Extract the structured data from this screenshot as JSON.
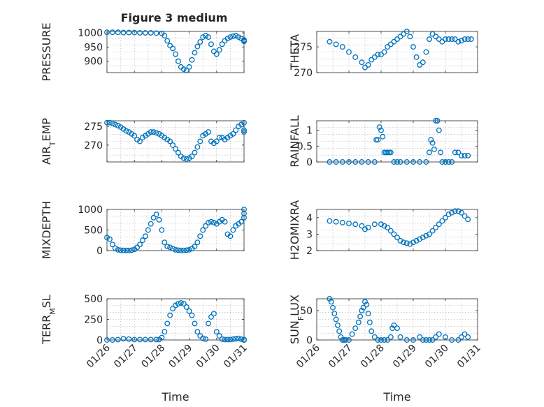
{
  "chart_data": [
    {
      "type": "scatter",
      "id": "pressure",
      "title": "Figure 3 medium",
      "xlabel": "",
      "ylabel": "PRESSURE",
      "ylim": [
        860,
        1005
      ],
      "yticks": [
        900,
        950,
        1000
      ],
      "ytick_labels": [
        "900",
        "950",
        "1000"
      ],
      "xlim": [
        0,
        5
      ],
      "xticks": [
        0,
        1,
        2,
        3,
        4,
        5
      ],
      "xtick_labels": [
        "01/26",
        "01/27",
        "01/28",
        "01/29",
        "01/30",
        "01/31"
      ],
      "show_xticklabels": false,
      "marker_color": "#0072BD",
      "series": [
        {
          "x": [
            0,
            0.2,
            0.4,
            0.6,
            0.8,
            1.0,
            1.2,
            1.4,
            1.6,
            1.8,
            2.0,
            2.1,
            2.2,
            2.3,
            2.4,
            2.5,
            2.6,
            2.7,
            2.8,
            2.9,
            3.0,
            3.1,
            3.2,
            3.3,
            3.4,
            3.5,
            3.6,
            3.7,
            3.8,
            3.9,
            4.0,
            4.1,
            4.2,
            4.3,
            4.4,
            4.5,
            4.6,
            4.7,
            4.8,
            4.9,
            5.0,
            5.1,
            5.2
          ],
          "y": [
            1002,
            1002,
            1002,
            1001,
            1001,
            1001,
            1000,
            1000,
            1000,
            999,
            998,
            990,
            972,
            955,
            945,
            925,
            900,
            880,
            872,
            868,
            880,
            905,
            930,
            952,
            968,
            985,
            990,
            985,
            960,
            935,
            925,
            940,
            960,
            972,
            980,
            985,
            988,
            990,
            985,
            980,
            975,
            972,
            970
          ]
        }
      ]
    },
    {
      "type": "scatter",
      "id": "theta",
      "title": "",
      "xlabel": "",
      "ylabel": "THETA",
      "ylim": [
        270,
        278
      ],
      "yticks": [
        270,
        275
      ],
      "ytick_labels": [
        "270",
        "275"
      ],
      "xlim": [
        0,
        5
      ],
      "xticks": [
        0,
        1,
        2,
        3,
        4,
        5
      ],
      "xtick_labels": [
        "01/26",
        "01/27",
        "01/28",
        "01/29",
        "01/30",
        "01/31"
      ],
      "show_xticklabels": false,
      "marker_color": "#0072BD",
      "series": [
        {
          "x": [
            0.4,
            0.6,
            0.8,
            1.0,
            1.2,
            1.4,
            1.5,
            1.6,
            1.7,
            1.8,
            1.9,
            2.0,
            2.1,
            2.2,
            2.3,
            2.4,
            2.5,
            2.6,
            2.7,
            2.8,
            2.9,
            3.0,
            3.1,
            3.2,
            3.3,
            3.4,
            3.5,
            3.6,
            3.7,
            3.8,
            3.9,
            4.0,
            4.1,
            4.2,
            4.3,
            4.4,
            4.5,
            4.6,
            4.7,
            4.8
          ],
          "y": [
            276,
            275.5,
            275,
            274,
            273,
            272,
            271,
            271.5,
            272.5,
            273,
            273.5,
            273.5,
            274,
            275,
            275.5,
            276,
            276.5,
            277,
            277.5,
            278,
            277,
            275,
            273,
            271.5,
            272,
            274,
            276.5,
            277.5,
            277,
            276.5,
            276,
            276.5,
            276.5,
            276.5,
            276.5,
            276,
            276.2,
            276.5,
            276.5,
            276.5
          ]
        }
      ]
    },
    {
      "type": "scatter",
      "id": "air_temp",
      "title": "",
      "xlabel": "",
      "ylabel": "AIR_TEMP",
      "ylim": [
        265.5,
        276.5
      ],
      "yticks": [
        270,
        275
      ],
      "ytick_labels": [
        "270",
        "275"
      ],
      "xlim": [
        0,
        5
      ],
      "xticks": [
        0,
        1,
        2,
        3,
        4,
        5
      ],
      "xtick_labels": [
        "01/26",
        "01/27",
        "01/28",
        "01/29",
        "01/30",
        "01/31"
      ],
      "show_xticklabels": false,
      "marker_color": "#0072BD",
      "series": [
        {
          "x": [
            0,
            0.1,
            0.2,
            0.3,
            0.4,
            0.5,
            0.6,
            0.7,
            0.8,
            0.9,
            1.0,
            1.1,
            1.2,
            1.3,
            1.4,
            1.5,
            1.6,
            1.7,
            1.8,
            1.9,
            2.0,
            2.1,
            2.2,
            2.3,
            2.4,
            2.5,
            2.6,
            2.7,
            2.8,
            2.9,
            3.0,
            3.1,
            3.2,
            3.3,
            3.4,
            3.5,
            3.6,
            3.7,
            3.8,
            3.9,
            4.0,
            4.1,
            4.2,
            4.3,
            4.4,
            4.5,
            4.6,
            4.7,
            4.8,
            4.9,
            5.0,
            5.1,
            5.2
          ],
          "y": [
            276,
            276,
            275.8,
            275.5,
            275.2,
            274.8,
            274.3,
            273.8,
            273.5,
            273,
            272.5,
            271.5,
            271,
            272,
            272.5,
            273,
            273.5,
            273.5,
            273.3,
            273,
            272.5,
            272,
            271.5,
            271,
            270,
            269,
            268,
            267,
            266.5,
            266.3,
            266.5,
            267,
            268,
            269.5,
            271,
            272.5,
            273,
            273.5,
            271,
            270.5,
            271,
            272,
            272,
            271.5,
            272,
            272.5,
            273,
            274,
            275,
            275.5,
            276,
            274,
            273.5
          ]
        }
      ]
    },
    {
      "type": "scatter",
      "id": "rainfall",
      "title": "",
      "xlabel": "",
      "ylabel": "RAINFALL",
      "ylim": [
        0,
        1.3
      ],
      "yticks": [
        0,
        0.5,
        1
      ],
      "ytick_labels": [
        "0",
        "0.5",
        "1"
      ],
      "xlim": [
        0,
        5
      ],
      "xticks": [
        0,
        1,
        2,
        3,
        4,
        5
      ],
      "xtick_labels": [
        "01/26",
        "01/27",
        "01/28",
        "01/29",
        "01/30",
        "01/31"
      ],
      "show_xticklabels": false,
      "marker_color": "#0072BD",
      "series": [
        {
          "x": [
            0.4,
            0.6,
            0.8,
            1.0,
            1.2,
            1.4,
            1.6,
            1.8,
            1.85,
            1.9,
            1.95,
            2.0,
            2.05,
            2.1,
            2.15,
            2.2,
            2.25,
            2.3,
            2.4,
            2.5,
            2.6,
            2.8,
            3.0,
            3.2,
            3.4,
            3.5,
            3.55,
            3.6,
            3.65,
            3.7,
            3.75,
            3.8,
            3.85,
            3.9,
            4.0,
            4.1,
            4.2,
            4.3,
            4.4,
            4.5,
            4.6,
            4.7
          ],
          "y": [
            0,
            0,
            0,
            0,
            0,
            0,
            0,
            0,
            0.7,
            0.7,
            1.1,
            1.0,
            0.8,
            0.3,
            0.3,
            0.3,
            0.3,
            0.3,
            0,
            0,
            0,
            0,
            0,
            0,
            0,
            0.3,
            0.7,
            0.6,
            0.4,
            1.3,
            1.3,
            1.0,
            0.3,
            0,
            0,
            0,
            0,
            0.3,
            0.3,
            0.2,
            0.2,
            0.2
          ]
        }
      ]
    },
    {
      "type": "scatter",
      "id": "mixdepth",
      "title": "",
      "xlabel": "",
      "ylabel": "MIXDEPTH",
      "ylim": [
        0,
        1000
      ],
      "yticks": [
        0,
        500,
        1000
      ],
      "ytick_labels": [
        "0",
        "500",
        "1000"
      ],
      "xlim": [
        0,
        5
      ],
      "xticks": [
        0,
        1,
        2,
        3,
        4,
        5
      ],
      "xtick_labels": [
        "01/26",
        "01/27",
        "01/28",
        "01/29",
        "01/30",
        "01/31"
      ],
      "show_xticklabels": false,
      "marker_color": "#0072BD",
      "series": [
        {
          "x": [
            0,
            0.1,
            0.2,
            0.3,
            0.4,
            0.5,
            0.6,
            0.7,
            0.8,
            0.9,
            1.0,
            1.1,
            1.2,
            1.3,
            1.4,
            1.5,
            1.6,
            1.7,
            1.8,
            1.9,
            2.0,
            2.1,
            2.2,
            2.3,
            2.4,
            2.5,
            2.6,
            2.7,
            2.8,
            2.9,
            3.0,
            3.1,
            3.2,
            3.3,
            3.4,
            3.5,
            3.6,
            3.7,
            3.8,
            3.9,
            4.0,
            4.1,
            4.2,
            4.3,
            4.4,
            4.5,
            4.6,
            4.7,
            4.8,
            4.9,
            5.0,
            5.1,
            5.2
          ],
          "y": [
            320,
            280,
            150,
            60,
            20,
            10,
            5,
            5,
            5,
            10,
            30,
            80,
            150,
            250,
            350,
            500,
            650,
            800,
            880,
            750,
            500,
            200,
            100,
            80,
            50,
            20,
            10,
            5,
            5,
            10,
            20,
            50,
            100,
            200,
            350,
            500,
            600,
            680,
            700,
            680,
            650,
            700,
            750,
            700,
            400,
            350,
            500,
            600,
            650,
            700,
            800,
            900,
            1000
          ]
        }
      ]
    },
    {
      "type": "scatter",
      "id": "h2omixra",
      "title": "",
      "xlabel": "",
      "ylabel": "H2OMIXRA",
      "ylim": [
        2,
        4.5
      ],
      "yticks": [
        2,
        3,
        4
      ],
      "ytick_labels": [
        "2",
        "3",
        "4"
      ],
      "xlim": [
        0,
        5
      ],
      "xticks": [
        0,
        1,
        2,
        3,
        4,
        5
      ],
      "xtick_labels": [
        "01/26",
        "01/27",
        "01/28",
        "01/29",
        "01/30",
        "01/31"
      ],
      "show_xticklabels": false,
      "marker_color": "#0072BD",
      "series": [
        {
          "x": [
            0.4,
            0.6,
            0.8,
            1.0,
            1.2,
            1.4,
            1.5,
            1.6,
            1.8,
            2.0,
            2.1,
            2.2,
            2.3,
            2.4,
            2.5,
            2.6,
            2.7,
            2.8,
            2.9,
            3.0,
            3.1,
            3.2,
            3.3,
            3.4,
            3.5,
            3.6,
            3.7,
            3.8,
            3.9,
            4.0,
            4.1,
            4.2,
            4.3,
            4.4,
            4.5,
            4.6,
            4.7
          ],
          "y": [
            3.8,
            3.75,
            3.7,
            3.65,
            3.6,
            3.5,
            3.3,
            3.4,
            3.6,
            3.6,
            3.5,
            3.4,
            3.2,
            3.0,
            2.8,
            2.6,
            2.5,
            2.45,
            2.4,
            2.5,
            2.6,
            2.7,
            2.8,
            2.9,
            3.0,
            3.2,
            3.4,
            3.6,
            3.8,
            4.0,
            4.2,
            4.3,
            4.4,
            4.4,
            4.3,
            4.1,
            3.9
          ]
        }
      ]
    },
    {
      "type": "scatter",
      "id": "terr_msl",
      "title": "",
      "xlabel": "Time",
      "ylabel": "TERR_MSL",
      "ylim": [
        0,
        500
      ],
      "yticks": [
        0,
        250,
        500
      ],
      "ytick_labels": [
        "0",
        "250",
        "500"
      ],
      "xlim": [
        0,
        5
      ],
      "xticks": [
        0,
        1,
        2,
        3,
        4,
        5
      ],
      "xtick_labels": [
        "01/26",
        "01/27",
        "01/28",
        "01/29",
        "01/30",
        "01/31"
      ],
      "show_xticklabels": true,
      "marker_color": "#0072BD",
      "series": [
        {
          "x": [
            0,
            0.2,
            0.4,
            0.6,
            0.8,
            1.0,
            1.2,
            1.4,
            1.6,
            1.8,
            1.9,
            2.0,
            2.1,
            2.2,
            2.3,
            2.4,
            2.5,
            2.6,
            2.7,
            2.8,
            2.9,
            3.0,
            3.1,
            3.2,
            3.3,
            3.4,
            3.5,
            3.6,
            3.7,
            3.8,
            3.9,
            4.0,
            4.1,
            4.2,
            4.3,
            4.4,
            4.5,
            4.6,
            4.7,
            4.8,
            4.9,
            5.0,
            5.1,
            5.2
          ],
          "y": [
            0,
            0,
            5,
            15,
            10,
            5,
            5,
            5,
            5,
            5,
            5,
            30,
            100,
            200,
            300,
            380,
            420,
            440,
            450,
            440,
            400,
            350,
            300,
            200,
            100,
            50,
            20,
            10,
            200,
            280,
            320,
            100,
            50,
            10,
            5,
            5,
            5,
            10,
            15,
            20,
            10,
            5,
            0,
            0
          ]
        }
      ]
    },
    {
      "type": "scatter",
      "id": "sun_flux",
      "title": "",
      "xlabel": "Time",
      "ylabel": "SUN_FLUX",
      "ylim": [
        0,
        70
      ],
      "yticks": [
        0,
        50
      ],
      "ytick_labels": [
        "0",
        "50"
      ],
      "xlim": [
        0,
        5
      ],
      "xticks": [
        0,
        1,
        2,
        3,
        4,
        5
      ],
      "xtick_labels": [
        "01/26",
        "01/27",
        "01/28",
        "01/29",
        "01/30",
        "01/31"
      ],
      "show_xticklabels": true,
      "marker_color": "#0072BD",
      "series": [
        {
          "x": [
            0.4,
            0.45,
            0.5,
            0.55,
            0.6,
            0.65,
            0.7,
            0.75,
            0.8,
            0.85,
            0.9,
            1.0,
            1.1,
            1.2,
            1.3,
            1.35,
            1.4,
            1.45,
            1.5,
            1.55,
            1.6,
            1.65,
            1.7,
            1.8,
            1.9,
            2.0,
            2.1,
            2.2,
            2.3,
            2.35,
            2.4,
            2.5,
            2.6,
            2.8,
            3.0,
            3.2,
            3.3,
            3.4,
            3.5,
            3.6,
            3.7,
            3.8,
            4.0,
            4.2,
            4.4,
            4.5,
            4.6,
            4.7
          ],
          "y": [
            70,
            65,
            55,
            45,
            35,
            25,
            15,
            5,
            0,
            0,
            0,
            0,
            10,
            20,
            30,
            40,
            50,
            55,
            65,
            60,
            45,
            30,
            15,
            5,
            0,
            0,
            0,
            0,
            5,
            20,
            25,
            20,
            5,
            0,
            0,
            5,
            0,
            0,
            0,
            0,
            5,
            10,
            5,
            0,
            0,
            5,
            10,
            5
          ]
        }
      ]
    }
  ]
}
